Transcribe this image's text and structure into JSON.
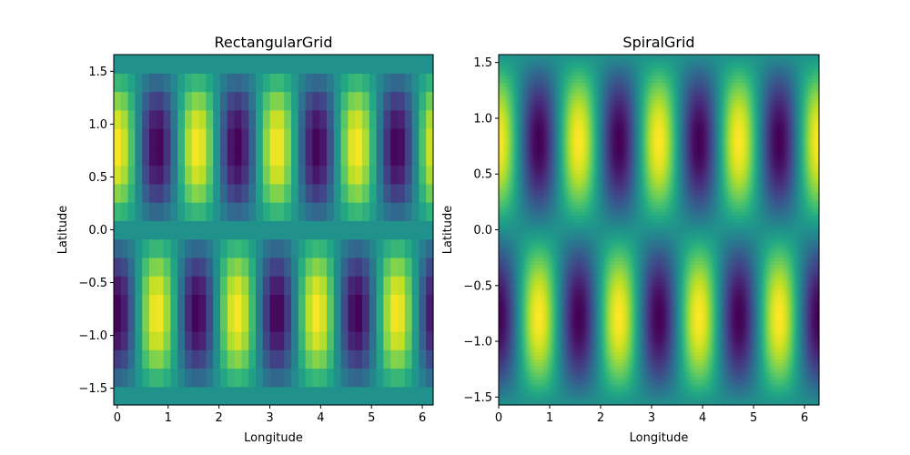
{
  "colormap": "viridis",
  "chart_data": [
    {
      "type": "heatmap",
      "title": "RectangularGrid",
      "xlabel": "Longitude",
      "ylabel": "Latitude",
      "grid": false,
      "xlim": [
        -0.0698,
        6.2134
      ],
      "ylim": [
        -1.6581,
        1.6581
      ],
      "xticks": [
        0,
        1,
        2,
        3,
        4,
        5,
        6
      ],
      "yticks": [
        -1.5,
        -1.0,
        -0.5,
        0.0,
        0.5,
        1.0,
        1.5
      ],
      "ytick_labels": [
        "−1.5",
        "−1.0",
        "−0.5",
        "0.0",
        "0.5",
        "1.0",
        "1.5"
      ],
      "xtick_labels": [
        "0",
        "1",
        "2",
        "3",
        "4",
        "5",
        "6"
      ],
      "field": "cos(4*lon) * sin(2*lat)",
      "x_centers": [
        0.0,
        0.1396,
        0.2793,
        0.4189,
        0.5585,
        0.6981,
        0.8378,
        0.9774,
        1.117,
        1.2566,
        1.3963,
        1.5359,
        1.6755,
        1.8151,
        1.9548,
        2.0944,
        2.234,
        2.3736,
        2.5133,
        2.6529,
        2.7925,
        2.9322,
        3.0718,
        3.2114,
        3.351,
        3.4907,
        3.6303,
        3.7699,
        3.9095,
        4.0492,
        4.1888,
        4.3284,
        4.468,
        4.6077,
        4.7473,
        4.8869,
        5.0265,
        5.1662,
        5.3058,
        5.4454,
        5.5851,
        5.7247,
        5.8643,
        6.0039,
        6.1436
      ],
      "y_centers": [
        -1.5708,
        -1.3963,
        -1.2217,
        -1.0472,
        -0.8727,
        -0.6981,
        -0.5236,
        -0.3491,
        -0.1745,
        0.0,
        0.1745,
        0.3491,
        0.5236,
        0.6981,
        0.8727,
        1.0472,
        1.2217,
        1.3963,
        1.5708
      ],
      "vmin": -1,
      "vmax": 1
    },
    {
      "type": "heatmap",
      "title": "SpiralGrid",
      "xlabel": "Longitude",
      "ylabel": "Latitude",
      "grid": false,
      "xlim": [
        0,
        6.2832
      ],
      "ylim": [
        -1.5708,
        1.5708
      ],
      "xticks": [
        0,
        1,
        2,
        3,
        4,
        5,
        6
      ],
      "yticks": [
        -1.5,
        -1.0,
        -0.5,
        0.0,
        0.5,
        1.0,
        1.5
      ],
      "ytick_labels": [
        "−1.5",
        "−1.0",
        "−0.5",
        "0.0",
        "0.5",
        "1.0",
        "1.5"
      ],
      "xtick_labels": [
        "0",
        "1",
        "2",
        "3",
        "4",
        "5",
        "6"
      ],
      "field": "cos(4*lon) * sin(2*lat)",
      "x_samples": 180,
      "y_samples": 100,
      "vmin": -1,
      "vmax": 1
    }
  ]
}
